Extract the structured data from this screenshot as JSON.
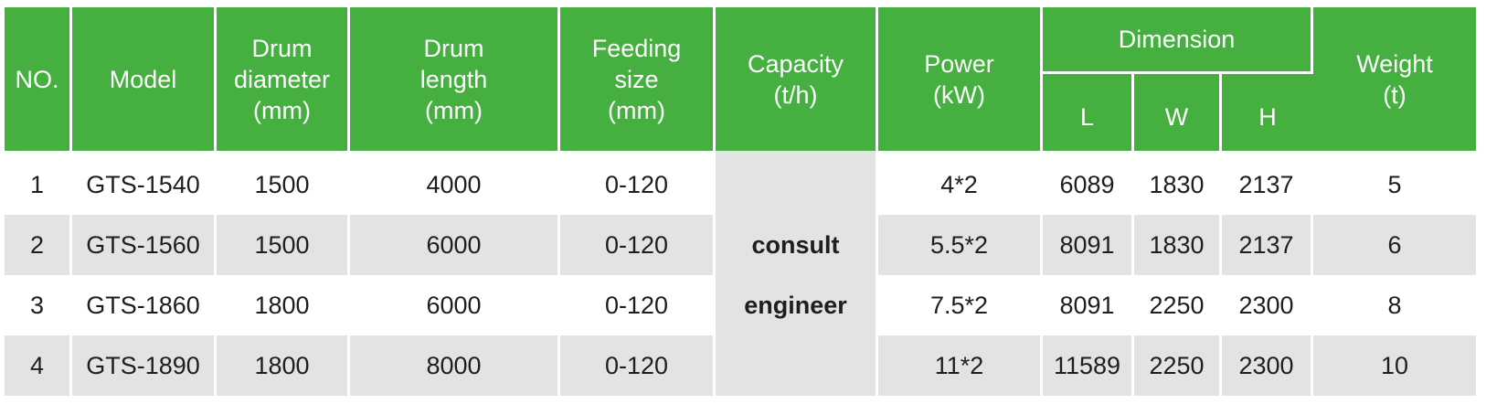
{
  "headers": {
    "no": "NO.",
    "model": "Model",
    "drum_diameter": [
      "Drum",
      "diameter",
      "(mm)"
    ],
    "drum_length": [
      "Drum",
      "length",
      "(mm)"
    ],
    "feeding_size": [
      "Feeding",
      "size",
      "(mm)"
    ],
    "capacity": [
      "Capacity",
      "(t/h)"
    ],
    "power": [
      "Power",
      "(kW)"
    ],
    "dimension": "Dimension",
    "dimension_sub": [
      "L",
      "W",
      "H"
    ],
    "weight": [
      "Weight",
      "(t)"
    ]
  },
  "capacity_note": [
    "consult",
    "engineer"
  ],
  "rows": [
    {
      "no": "1",
      "model": "GTS-1540",
      "diameter": "1500",
      "length": "4000",
      "feeding": "0-120",
      "power": "4*2",
      "l": "6089",
      "w": "1830",
      "h": "2137",
      "weight": "5"
    },
    {
      "no": "2",
      "model": "GTS-1560",
      "diameter": "1500",
      "length": "6000",
      "feeding": "0-120",
      "power": "5.5*2",
      "l": "8091",
      "w": "1830",
      "h": "2137",
      "weight": "6"
    },
    {
      "no": "3",
      "model": "GTS-1860",
      "diameter": "1800",
      "length": "6000",
      "feeding": "0-120",
      "power": "7.5*2",
      "l": "8091",
      "w": "2250",
      "h": "2300",
      "weight": "8"
    },
    {
      "no": "4",
      "model": "GTS-1890",
      "diameter": "1800",
      "length": "8000",
      "feeding": "0-120",
      "power": "11*2",
      "l": "11589",
      "w": "2250",
      "h": "2300",
      "weight": "10"
    }
  ],
  "colors": {
    "header_green": "#45b040",
    "row_grey": "#e3e3e3"
  }
}
